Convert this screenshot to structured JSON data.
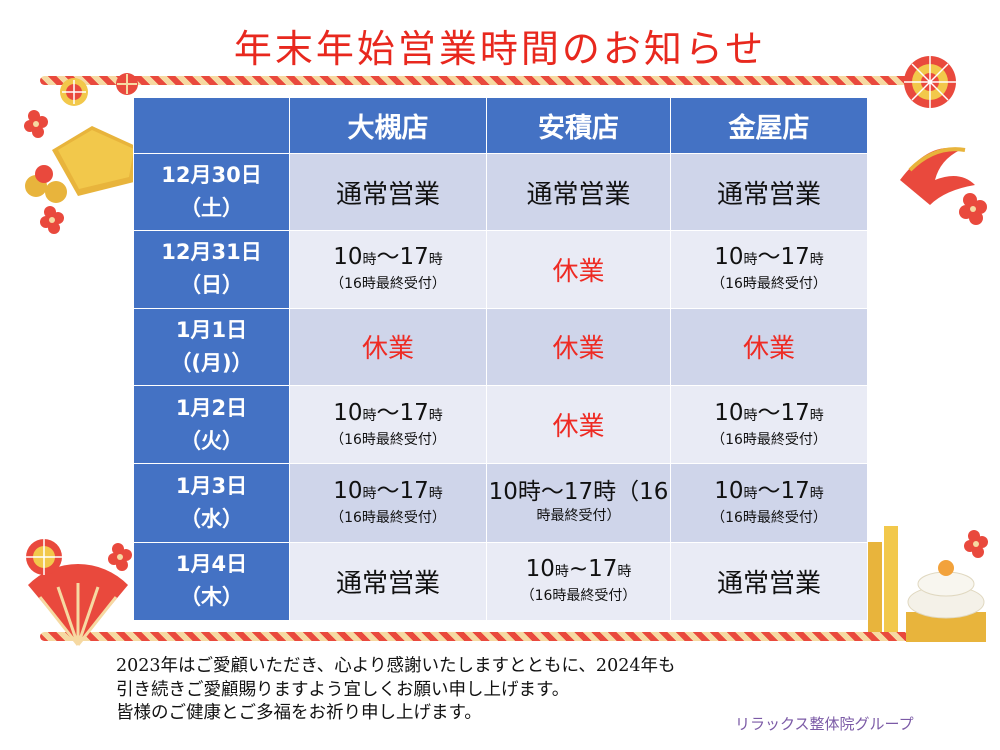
{
  "title": "年末年始営業時間のお知らせ",
  "columns": [
    "大槻店",
    "安積店",
    "金屋店"
  ],
  "rows": [
    {
      "date": "12月30日",
      "day": "（土）",
      "cells": [
        {
          "type": "normal",
          "text": "通常営業"
        },
        {
          "type": "normal",
          "text": "通常営業"
        },
        {
          "type": "normal",
          "text": "通常営業"
        }
      ]
    },
    {
      "date": "12月31日",
      "day": "（日）",
      "cells": [
        {
          "type": "hours",
          "open": "10",
          "close": "17",
          "unit": "時",
          "sep": "〜",
          "note": "（16時最終受付）"
        },
        {
          "type": "closed",
          "text": "休業"
        },
        {
          "type": "hours",
          "open": "10",
          "close": "17",
          "unit": "時",
          "sep": "〜",
          "note": "（16時最終受付）"
        }
      ]
    },
    {
      "date": "1月1日",
      "day": "（(月)）",
      "cells": [
        {
          "type": "closed",
          "text": "休業"
        },
        {
          "type": "closed",
          "text": "休業"
        },
        {
          "type": "closed",
          "text": "休業"
        }
      ]
    },
    {
      "date": "1月2日",
      "day": "（火）",
      "cells": [
        {
          "type": "hours",
          "open": "10",
          "close": "17",
          "unit": "時",
          "sep": "〜",
          "note": "（16時最終受付）"
        },
        {
          "type": "closed",
          "text": "休業"
        },
        {
          "type": "hours",
          "open": "10",
          "close": "17",
          "unit": "時",
          "sep": "〜",
          "note": "（16時最終受付）"
        }
      ]
    },
    {
      "date": "1月3日",
      "day": "（水）",
      "cells": [
        {
          "type": "hours",
          "open": "10",
          "close": "17",
          "unit": "時",
          "sep": "〜",
          "note": "（16時最終受付）"
        },
        {
          "type": "hours-wrap",
          "line1": "10時〜17時（16",
          "line2": "時最終受付）"
        },
        {
          "type": "hours",
          "open": "10",
          "close": "17",
          "unit": "時",
          "sep": "〜",
          "note": "（16時最終受付）"
        }
      ]
    },
    {
      "date": "1月4日",
      "day": "（木）",
      "cells": [
        {
          "type": "normal",
          "text": "通常営業"
        },
        {
          "type": "hours",
          "open": "10",
          "close": "17",
          "unit": "時",
          "sep": "~",
          "note": "（16時最終受付）"
        },
        {
          "type": "normal",
          "text": "通常営業"
        }
      ]
    }
  ],
  "message": [
    "2023年はご愛顧いただき、心より感謝いたしますとともに、2024年も",
    "引き続きご愛顧賜りますよう宜しくお願い申し上げます。",
    "皆様のご健康とご多福をお祈り申し上げます。"
  ],
  "signature": "リラックス整体院グループ",
  "colors": {
    "header": "#4472c4",
    "row_dark": "#cfd5ea",
    "row_light": "#e9ebf5",
    "closed": "#ee2b24",
    "title": "#e8281e"
  },
  "decorations": [
    "temari-ball-icon",
    "ema-plaque-icon",
    "bell-icon",
    "plum-blossom-icon",
    "pine-branch-icon",
    "folding-fan-icon",
    "kadomatsu-icon",
    "kagami-mochi-icon"
  ]
}
